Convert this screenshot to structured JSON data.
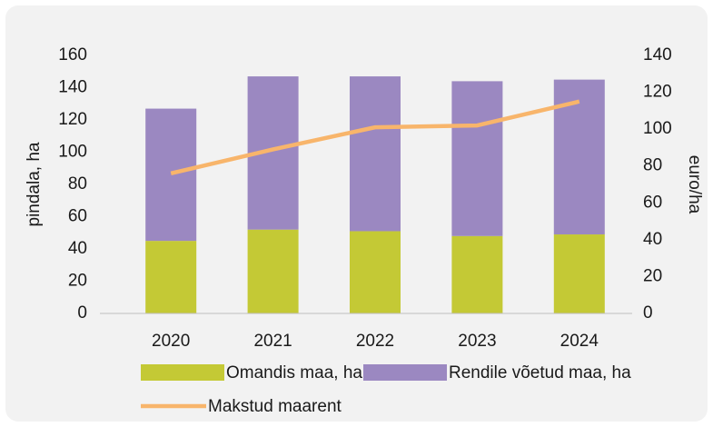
{
  "chart_data": {
    "type": "bar",
    "categories": [
      "2020",
      "2021",
      "2022",
      "2023",
      "2024"
    ],
    "series": [
      {
        "name": "Omandis maa, ha",
        "color": "#c4c935",
        "type": "bar",
        "values": [
          45,
          52,
          51,
          48,
          49
        ]
      },
      {
        "name": "Rendile võetud maa, ha",
        "color": "#9b88c1",
        "type": "bar",
        "values": [
          82,
          95,
          96,
          96,
          96
        ]
      },
      {
        "name": "Makstud maarent",
        "color": "#f8b56b",
        "type": "line",
        "axis": "y2",
        "values": [
          76,
          89,
          101,
          102,
          115
        ]
      }
    ],
    "ylabel": "pindala, ha",
    "y2label": "euro/ha",
    "ylim": [
      0,
      160
    ],
    "yticks": [
      0,
      20,
      40,
      60,
      80,
      100,
      120,
      140,
      160
    ],
    "y2lim": [
      0,
      140
    ],
    "y2ticks": [
      0,
      20,
      40,
      60,
      80,
      100,
      120,
      140
    ],
    "stacked": true,
    "grid": false,
    "legend": "bottom"
  }
}
